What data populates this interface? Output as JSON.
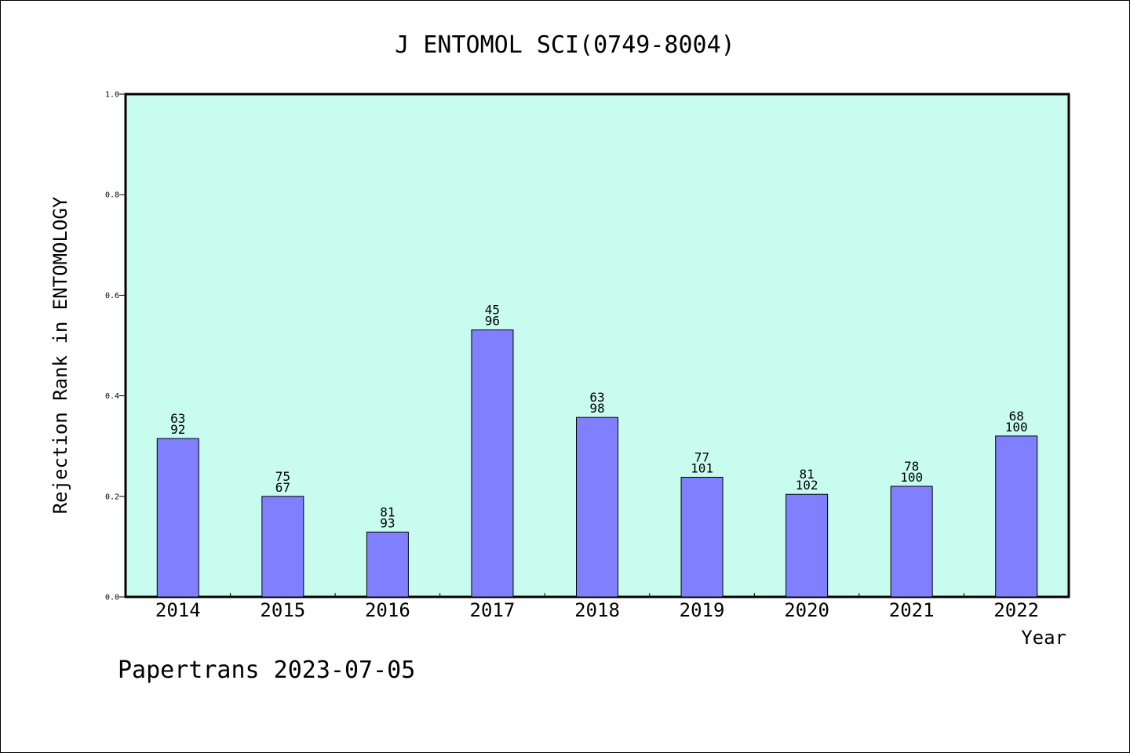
{
  "watermark": "Papertrans 2023-07-05",
  "colors": {
    "plot_background": "#c8fcee",
    "bar_fill": "#8080ff",
    "bar_stroke": "#000000",
    "axis": "#000000"
  },
  "chart_data": {
    "type": "bar",
    "title": "J ENTOMOL SCI(0749-8004)",
    "xlabel": "Year",
    "ylabel": "Rejection Rank in ENTOMOLOGY",
    "ylim": [
      0,
      1.0
    ],
    "yticks": [
      "0.0",
      "0.2",
      "0.4",
      "0.6",
      "0.8",
      "1.0"
    ],
    "grid": false,
    "categories": [
      "2014",
      "2015",
      "2016",
      "2017",
      "2018",
      "2019",
      "2020",
      "2021",
      "2022"
    ],
    "values": [
      0.315,
      0.2,
      0.129,
      0.531,
      0.357,
      0.238,
      0.204,
      0.22,
      0.32
    ],
    "labels_top": [
      "63",
      "75",
      "81",
      "45",
      "63",
      "77",
      "81",
      "78",
      "68"
    ],
    "labels_bottom": [
      "92",
      "67",
      "93",
      "96",
      "98",
      "101",
      "102",
      "100",
      "100"
    ]
  }
}
